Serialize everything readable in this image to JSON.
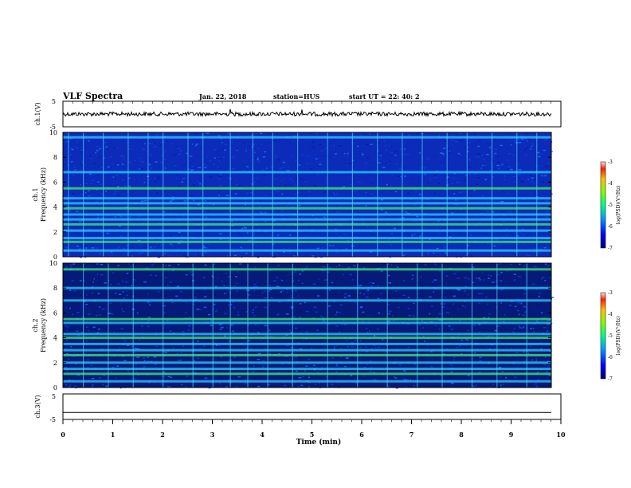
{
  "header": {
    "title": "VLF Spectra",
    "date": "Jan. 22, 2018",
    "station": "station=HUS",
    "start": "start UT =  22: 40: 2"
  },
  "chart_data": [
    {
      "type": "line",
      "panel": "ch1-waveform",
      "ylabel": "ch.1(V)",
      "ylim": [
        -5,
        5
      ],
      "y_ticks": [
        "5",
        "-5"
      ],
      "series": [
        {
          "values": [
            0.0,
            0.1,
            -0.1,
            0.05,
            0.2,
            -0.2,
            0.1
          ]
        }
      ],
      "baseline_offset": 0.0
    },
    {
      "type": "heatmap",
      "panel": "ch1-spectrogram",
      "ylabel": "ch.1\nFrequency (kHz)",
      "ylim": [
        0,
        10
      ],
      "y_ticks": [
        "0",
        "2",
        "4",
        "6",
        "8",
        "10"
      ],
      "bands_khz": [
        0.5,
        1.2,
        1.5,
        2.1,
        2.6,
        3.0,
        3.4,
        3.9,
        4.3,
        4.7,
        5.5,
        6.8,
        9.6
      ],
      "impulses_min": [
        0.1,
        0.4,
        0.8,
        1.3,
        1.7,
        2.0,
        2.5,
        2.8,
        3.35,
        3.8,
        4.2,
        4.7,
        5.3,
        5.8,
        6.3,
        6.8,
        7.2,
        7.7,
        8.1,
        8.6,
        9.1,
        9.5
      ],
      "colorbar": {
        "label": "log(PSD)(V²/Hz)",
        "range": [
          -7,
          -3
        ],
        "ticks": [
          "-3",
          "-4",
          "-5",
          "-6",
          "-7"
        ]
      }
    },
    {
      "type": "heatmap",
      "panel": "ch2-spectrogram",
      "ylabel": "ch.2\nFrequency (kHz)",
      "ylim": [
        0,
        10
      ],
      "y_ticks": [
        "0",
        "2",
        "4",
        "6",
        "8",
        "10"
      ],
      "bands_khz": [
        0.5,
        1.1,
        1.5,
        2.0,
        2.6,
        3.0,
        3.5,
        4.0,
        4.3,
        5.2,
        5.5,
        7.0,
        8.0,
        9.5
      ],
      "impulses_min": [
        0.4,
        0.9,
        1.4,
        2.0,
        2.6,
        3.0,
        3.35,
        3.7,
        4.1,
        4.6,
        5.3,
        5.9,
        6.5,
        7.1,
        7.6,
        8.2,
        8.7,
        9.3
      ],
      "colorbar": {
        "label": "log(PSD)(V²/Hz)",
        "range": [
          -7,
          -3
        ],
        "ticks": [
          "-3",
          "-4",
          "-5",
          "-6",
          "-7"
        ]
      }
    },
    {
      "type": "line",
      "panel": "ch3-waveform",
      "ylabel": "ch.3(V)",
      "ylim": [
        -5,
        5
      ],
      "y_ticks": [
        "5",
        "-5"
      ],
      "series": [
        {
          "values": [
            -1.0,
            -1.0
          ]
        }
      ]
    }
  ],
  "x_axis": {
    "label": "Time (min)",
    "range": [
      0,
      10
    ],
    "ticks": [
      "0",
      "1",
      "2",
      "3",
      "4",
      "5",
      "6",
      "7",
      "8",
      "9",
      "10"
    ]
  },
  "colors": {
    "background_low": "#00008b",
    "mid": "#0050ff",
    "band": "#2ad0ff",
    "band_high": "#40f070"
  }
}
